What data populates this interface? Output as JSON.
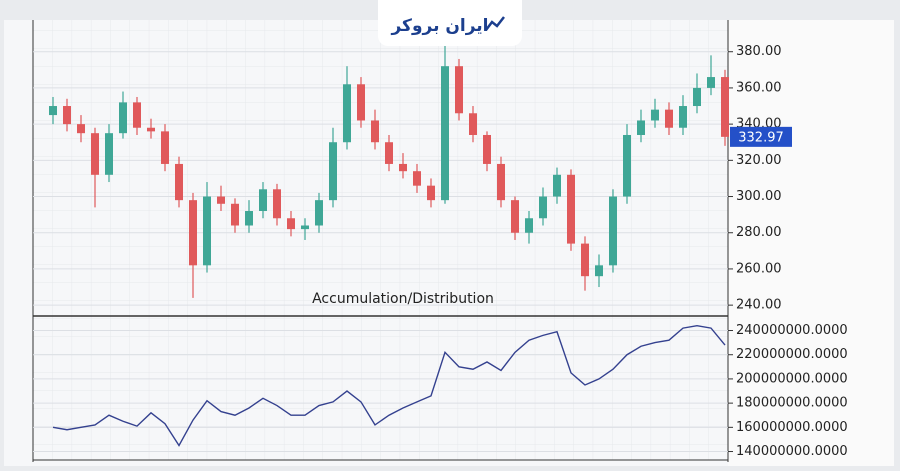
{
  "brand": "ایران بروکر",
  "chart_data": [
    {
      "type": "candlestick",
      "open": [
        345,
        350,
        340,
        335,
        312,
        335,
        352,
        338,
        336,
        318,
        298,
        262,
        300,
        296,
        284,
        292,
        304,
        288,
        282,
        284,
        298,
        330,
        362,
        342,
        330,
        318,
        314,
        306,
        298,
        372,
        346,
        334,
        318,
        298,
        280,
        288,
        300,
        312,
        274,
        256,
        262,
        300,
        334,
        342,
        348,
        338,
        350,
        360,
        366
      ],
      "high": [
        355,
        354,
        345,
        338,
        340,
        358,
        355,
        343,
        340,
        322,
        302,
        308,
        306,
        299,
        298,
        308,
        307,
        292,
        288,
        302,
        338,
        372,
        366,
        348,
        334,
        324,
        318,
        310,
        385,
        376,
        350,
        336,
        322,
        300,
        292,
        305,
        316,
        315,
        278,
        268,
        304,
        340,
        348,
        354,
        352,
        356,
        368,
        378,
        370
      ],
      "low": [
        340,
        336,
        330,
        294,
        308,
        332,
        334,
        332,
        314,
        294,
        244,
        258,
        292,
        280,
        280,
        288,
        284,
        278,
        276,
        280,
        294,
        326,
        338,
        326,
        314,
        310,
        302,
        294,
        296,
        342,
        330,
        314,
        294,
        276,
        274,
        284,
        296,
        270,
        248,
        250,
        258,
        296,
        330,
        338,
        334,
        334,
        346,
        356,
        328
      ],
      "close": [
        350,
        340,
        335,
        312,
        335,
        352,
        338,
        336,
        318,
        298,
        262,
        300,
        296,
        284,
        292,
        304,
        288,
        282,
        284,
        298,
        330,
        362,
        342,
        330,
        318,
        314,
        306,
        298,
        372,
        346,
        334,
        318,
        298,
        280,
        288,
        300,
        312,
        274,
        256,
        262,
        300,
        334,
        342,
        348,
        338,
        350,
        360,
        366,
        332.97
      ],
      "up_color": "#3fa796",
      "down_color": "#e0595b",
      "last_color": "#2450c8",
      "ylim": [
        234,
        392
      ],
      "yticks": [
        {
          "value": 240,
          "label": "240.00"
        },
        {
          "value": 260,
          "label": "260.00"
        },
        {
          "value": 280,
          "label": "280.00"
        },
        {
          "value": 300,
          "label": "300.00"
        },
        {
          "value": 320,
          "label": "320.00"
        },
        {
          "value": 340,
          "label": "340.00"
        },
        {
          "value": 360,
          "label": "360.00"
        },
        {
          "value": 380,
          "label": "380.00"
        }
      ],
      "grid": true
    },
    {
      "type": "line",
      "title": "Accumulation/Distribution",
      "color": "#34418f",
      "values": [
        160000000,
        158000000,
        160000000,
        162000000,
        170000000,
        165000000,
        161000000,
        172000000,
        163000000,
        145000000,
        166000000,
        182000000,
        173000000,
        170000000,
        176000000,
        184000000,
        178000000,
        170000000,
        170000000,
        178000000,
        181000000,
        190000000,
        181000000,
        162000000,
        170000000,
        176000000,
        181000000,
        186000000,
        222000000,
        210000000,
        208000000,
        214000000,
        207000000,
        222000000,
        232000000,
        236000000,
        239000000,
        205000000,
        195000000,
        200000000,
        208000000,
        220000000,
        227000000,
        230000000,
        232000000,
        242000000,
        244000000,
        242000000,
        228000000
      ],
      "ylim": [
        133000000,
        252000000
      ],
      "yticks": [
        {
          "value": 140000000,
          "label": "140000000.0000"
        },
        {
          "value": 160000000,
          "label": "160000000.0000"
        },
        {
          "value": 180000000,
          "label": "180000000.0000"
        },
        {
          "value": 200000000,
          "label": "200000000.0000"
        },
        {
          "value": 220000000,
          "label": "220000000.0000"
        },
        {
          "value": 240000000,
          "label": "240000000.0000"
        }
      ],
      "grid": true
    }
  ]
}
